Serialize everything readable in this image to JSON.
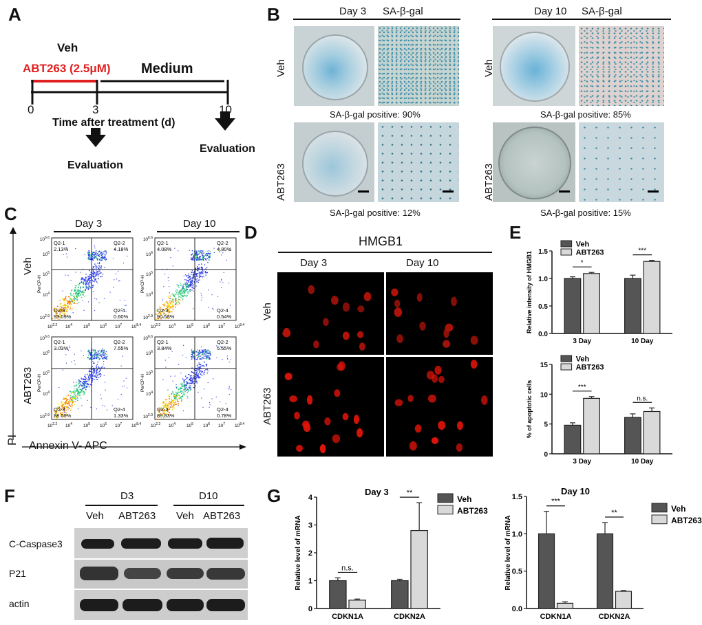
{
  "panels": {
    "a": "A",
    "b": "B",
    "c": "C",
    "d": "D",
    "e": "E",
    "f": "F",
    "g": "G"
  },
  "a": {
    "veh": "Veh",
    "abt": "ABT263 (2.5μM)",
    "medium": "Medium",
    "t0": "0",
    "t3": "3",
    "t10": "10",
    "xlabel": "Time after treatment (d)",
    "eval1": "Evaluation",
    "eval2": "Evaluation",
    "abt_color": "#e02020"
  },
  "b": {
    "day3": "Day 3",
    "day10": "Day 10",
    "stain": "SA-β-gal",
    "veh": "Veh",
    "abt": "ABT263",
    "pos_veh3": "SA-β-gal positive: 90%",
    "pos_veh10": "SA-β-gal positive: 85%",
    "pos_abt3": "SA-β-gal positive: 12%",
    "pos_abt10": "SA-β-gal positive: 15%"
  },
  "c": {
    "day3": "Day 3",
    "day10": "Day 10",
    "veh": "Veh",
    "abt": "ABT263",
    "ylabel": "PI",
    "xlabel": "Annexin V- APC",
    "plot_ylabel": "PerCP-H",
    "plots": [
      {
        "q1": "Q2-1",
        "v1": "2.13%",
        "q2": "Q2-2",
        "v2": "4.18%",
        "q3": "Q2-3",
        "v3": "93.09%",
        "q4": "Q2-4",
        "v4": "0.60%"
      },
      {
        "q1": "Q2-1",
        "v1": "4.08%",
        "q2": "Q2-2",
        "v2": "4.80%",
        "q3": "Q2-3",
        "v3": "90.58%",
        "q4": "Q2-4",
        "v4": "0.54%"
      },
      {
        "q1": "Q2-1",
        "v1": "3.03%",
        "q2": "Q2-2",
        "v2": "7.55%",
        "q3": "Q2-3",
        "v3": "88.09%",
        "q4": "Q2-4",
        "v4": "1.33%"
      },
      {
        "q1": "Q2-1",
        "v1": "3.84%",
        "q2": "Q2-2",
        "v2": "5.55%",
        "q3": "Q2-3",
        "v3": "89.83%",
        "q4": "Q2-4",
        "v4": "0.78%"
      }
    ],
    "yticks": [
      "10^6.6",
      "10^6",
      "10^5",
      "10^4",
      "10^2.9"
    ],
    "xticks": [
      "10^2.2",
      "10^4",
      "10^5",
      "10^6",
      "10^7",
      "10^8.4"
    ]
  },
  "d": {
    "title": "HMGB1",
    "day3": "Day 3",
    "day10": "Day 10",
    "veh": "Veh",
    "abt": "ABT263"
  },
  "f": {
    "d3": "D3",
    "d10": "D10",
    "lanes": [
      "Veh",
      "ABT263",
      "Veh",
      "ABT263"
    ],
    "rows": [
      "C-Caspase3",
      "P21",
      "actin"
    ]
  },
  "chart_data": [
    {
      "id": "E-top",
      "type": "bar",
      "ylabel": "Relative  intensity of HMGB1",
      "categories": [
        "3 Day",
        "10 Day"
      ],
      "series": [
        {
          "name": "Veh",
          "values": [
            1.0,
            1.0
          ],
          "err": [
            0.03,
            0.06
          ],
          "color": "#555555"
        },
        {
          "name": "ABT263",
          "values": [
            1.09,
            1.31
          ],
          "err": [
            0.02,
            0.02
          ],
          "color": "#d9d9d9"
        }
      ],
      "ylim": [
        0,
        1.5
      ],
      "yticks": [
        "0.0",
        "0.5",
        "1.0",
        "1.5"
      ],
      "sig": [
        "*",
        "***"
      ]
    },
    {
      "id": "E-bottom",
      "type": "bar",
      "ylabel": "% of apoptotic cells",
      "categories": [
        "3 Day",
        "10 Day"
      ],
      "series": [
        {
          "name": "Veh",
          "values": [
            4.8,
            6.1
          ],
          "err": [
            0.4,
            0.6
          ],
          "color": "#555555"
        },
        {
          "name": "ABT263",
          "values": [
            9.3,
            7.1
          ],
          "err": [
            0.3,
            0.6
          ],
          "color": "#d9d9d9"
        }
      ],
      "ylim": [
        0,
        15
      ],
      "yticks": [
        "0",
        "5",
        "10",
        "15"
      ],
      "sig": [
        "***",
        "n.s."
      ]
    },
    {
      "id": "G-day3",
      "type": "bar",
      "title": "Day 3",
      "ylabel": "Relative level of mRNA",
      "categories": [
        "CDKN1A",
        "CDKN2A"
      ],
      "series": [
        {
          "name": "Veh",
          "values": [
            1.0,
            1.0
          ],
          "err": [
            0.1,
            0.05
          ],
          "color": "#555555"
        },
        {
          "name": "ABT263",
          "values": [
            0.3,
            2.8
          ],
          "err": [
            0.04,
            1.0
          ],
          "color": "#d9d9d9"
        }
      ],
      "ylim": [
        0,
        4
      ],
      "yticks": [
        "0",
        "1",
        "2",
        "3",
        "4"
      ],
      "sig": [
        "n.s.",
        "**"
      ]
    },
    {
      "id": "G-day10",
      "type": "bar",
      "title": "Day 10",
      "ylabel": "Relative level of mRNA",
      "categories": [
        "CDKN1A",
        "CDKN2A"
      ],
      "series": [
        {
          "name": "Veh",
          "values": [
            1.0,
            1.0
          ],
          "err": [
            0.3,
            0.15
          ],
          "color": "#555555"
        },
        {
          "name": "ABT263",
          "values": [
            0.07,
            0.23
          ],
          "err": [
            0.02,
            0.01
          ],
          "color": "#d9d9d9"
        }
      ],
      "ylim": [
        0,
        1.5
      ],
      "yticks": [
        "0.0",
        "0.5",
        "1.0",
        "1.5"
      ],
      "sig": [
        "***",
        "**"
      ]
    }
  ]
}
